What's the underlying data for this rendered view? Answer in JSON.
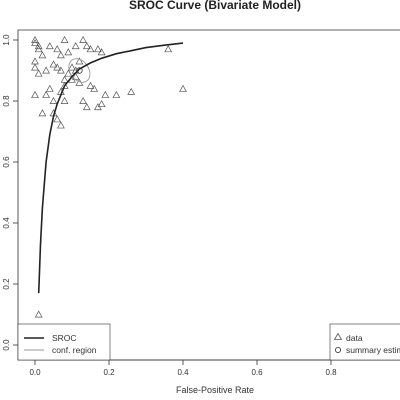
{
  "chart_data": {
    "type": "line",
    "title": "SROC Curve (Bivariate Model)",
    "xlabel": "False-Positive Rate",
    "ylabel": "",
    "xlim": [
      0,
      1
    ],
    "ylim": [
      0,
      1
    ],
    "x_ticks": [
      "0.0",
      "0.2",
      "0.4",
      "0.6",
      "0.8"
    ],
    "y_ticks": [
      "0.0",
      "0.2",
      "0.4",
      "0.6",
      "0.8",
      "1.0"
    ],
    "grid": false,
    "series": [
      {
        "name": "SROC",
        "kind": "curve",
        "x": [
          0.01,
          0.015,
          0.02,
          0.03,
          0.04,
          0.05,
          0.06,
          0.08,
          0.1,
          0.12,
          0.15,
          0.18,
          0.22,
          0.26,
          0.3,
          0.35,
          0.4
        ],
        "y": [
          0.17,
          0.33,
          0.45,
          0.6,
          0.69,
          0.75,
          0.79,
          0.85,
          0.88,
          0.905,
          0.925,
          0.94,
          0.955,
          0.965,
          0.975,
          0.983,
          0.99
        ]
      },
      {
        "name": "conf. region",
        "kind": "ellipse",
        "center": [
          0.12,
          0.9
        ],
        "x_radius": 0.025,
        "y_radius": 0.042,
        "rotation_deg": -35
      },
      {
        "name": "data",
        "kind": "scatter",
        "marker": "triangle",
        "x": [
          0.0,
          0.0,
          0.01,
          0.01,
          0.0,
          0.02,
          0.04,
          0.06,
          0.07,
          0.08,
          0.09,
          0.11,
          0.12,
          0.13,
          0.14,
          0.15,
          0.17,
          0.18,
          0.0,
          0.01,
          0.03,
          0.05,
          0.06,
          0.07,
          0.08,
          0.09,
          0.1,
          0.11,
          0.12,
          0.03,
          0.04,
          0.05,
          0.07,
          0.08,
          0.1,
          0.11,
          0.15,
          0.16,
          0.19,
          0.22,
          0.26,
          0.36,
          0.4,
          0.0,
          0.02,
          0.05,
          0.06,
          0.07,
          0.08,
          0.13,
          0.14,
          0.17,
          0.18,
          0.01
        ],
        "y": [
          1.0,
          0.99,
          0.97,
          0.98,
          0.93,
          0.95,
          0.98,
          0.97,
          0.95,
          1.0,
          0.96,
          0.98,
          0.93,
          1.0,
          0.98,
          0.97,
          0.97,
          0.96,
          0.91,
          0.89,
          0.9,
          0.92,
          0.91,
          0.9,
          0.87,
          0.89,
          0.91,
          0.88,
          0.86,
          0.82,
          0.84,
          0.8,
          0.83,
          0.85,
          0.87,
          0.9,
          0.85,
          0.84,
          0.82,
          0.82,
          0.83,
          0.97,
          0.84,
          0.82,
          0.76,
          0.76,
          0.74,
          0.72,
          0.8,
          0.8,
          0.78,
          0.78,
          0.79,
          0.1
        ]
      },
      {
        "name": "summary estimate",
        "kind": "point",
        "marker": "circle",
        "x": [
          0.12
        ],
        "y": [
          0.9
        ]
      }
    ],
    "legend_left": {
      "placement": "bottom-left",
      "items": [
        {
          "label": "SROC"
        },
        {
          "label": "conf. region"
        }
      ]
    },
    "legend_right": {
      "placement": "bottom-right",
      "items": [
        {
          "label": "data"
        },
        {
          "label": "summary estimate"
        }
      ]
    },
    "colors": {
      "curve": "#222222",
      "ellipse": "#999999",
      "points": "#555555",
      "axis": "#333333"
    }
  }
}
